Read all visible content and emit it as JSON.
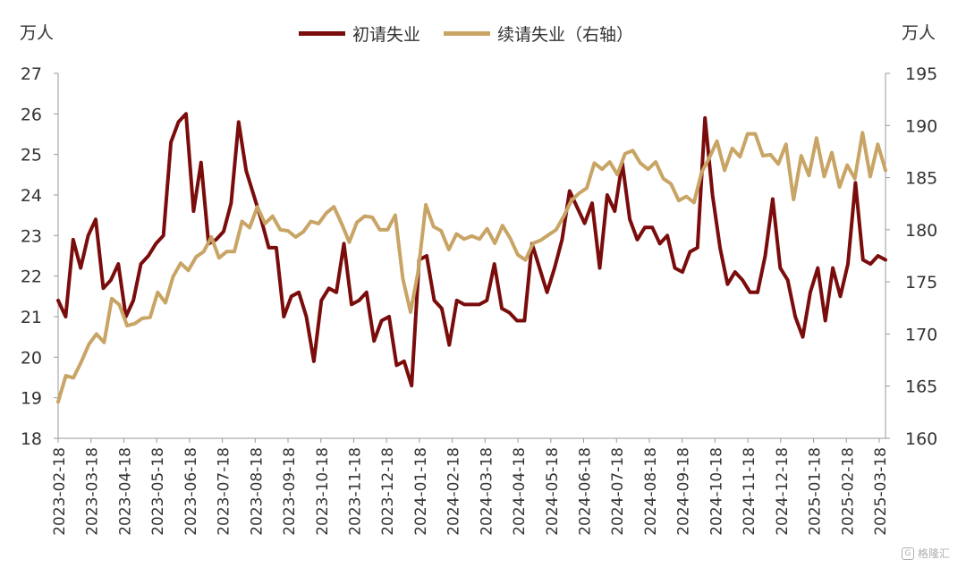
{
  "chart_data": {
    "type": "line",
    "unit_left": "万人",
    "unit_right": "万人",
    "y_left": {
      "min": 18,
      "max": 27,
      "ticks": [
        18,
        19,
        20,
        21,
        22,
        23,
        24,
        25,
        26,
        27
      ]
    },
    "y_right": {
      "min": 160,
      "max": 195,
      "ticks": [
        160,
        165,
        170,
        175,
        180,
        185,
        190,
        195
      ]
    },
    "x_tick_labels": [
      "2023-02-18",
      "2023-03-18",
      "2023-04-18",
      "2023-05-18",
      "2023-06-18",
      "2023-07-18",
      "2023-08-18",
      "2023-09-18",
      "2023-10-18",
      "2023-11-18",
      "2023-12-18",
      "2024-01-18",
      "2024-02-18",
      "2024-03-18",
      "2024-04-18",
      "2024-05-18",
      "2024-06-18",
      "2024-07-18",
      "2024-08-18",
      "2024-09-18",
      "2024-10-18",
      "2024-11-18",
      "2024-12-18",
      "2025-01-18",
      "2025-02-18",
      "2025-03-18"
    ],
    "grid": false,
    "legend_position": "top-center",
    "series": [
      {
        "name": "初请失业",
        "axis": "left",
        "color": "#7a0c0c",
        "values": [
          21.4,
          21.0,
          22.9,
          22.2,
          23.0,
          23.4,
          21.7,
          21.9,
          22.3,
          21.0,
          21.4,
          22.3,
          22.5,
          22.8,
          23.0,
          25.3,
          25.8,
          26.0,
          23.6,
          24.8,
          22.8,
          22.9,
          23.1,
          23.8,
          25.8,
          24.6,
          24.0,
          23.4,
          22.7,
          22.7,
          21.0,
          21.5,
          21.6,
          21.0,
          19.9,
          21.4,
          21.7,
          21.6,
          22.8,
          21.3,
          21.4,
          21.6,
          20.4,
          20.9,
          21.0,
          19.8,
          19.9,
          19.3,
          22.4,
          22.5,
          21.4,
          21.2,
          20.3,
          21.4,
          21.3,
          21.3,
          21.3,
          21.4,
          22.3,
          21.2,
          21.1,
          20.9,
          20.9,
          22.8,
          22.2,
          21.6,
          22.2,
          22.9,
          24.1,
          23.7,
          23.3,
          23.8,
          22.2,
          24.0,
          23.6,
          24.8,
          23.4,
          22.9,
          23.2,
          23.2,
          22.8,
          23.0,
          22.2,
          22.1,
          22.6,
          22.7,
          25.9,
          24.0,
          22.7,
          21.8,
          22.1,
          21.9,
          21.6,
          21.6,
          22.5,
          23.9,
          22.2,
          21.9,
          21.0,
          20.5,
          21.6,
          22.2,
          20.9,
          22.2,
          21.5,
          22.3,
          24.3,
          22.4,
          22.3,
          22.5,
          22.4
        ]
      },
      {
        "name": "续请失业（右轴）",
        "axis": "right",
        "color": "#c8a465",
        "values": [
          163.5,
          166.0,
          165.8,
          167.3,
          169.0,
          170.0,
          169.2,
          173.4,
          172.8,
          170.8,
          171.0,
          171.5,
          171.6,
          174.0,
          173.0,
          175.5,
          176.8,
          176.1,
          177.4,
          177.9,
          179.3,
          177.3,
          177.9,
          177.9,
          180.8,
          180.2,
          182.2,
          180.6,
          181.3,
          180.0,
          179.9,
          179.3,
          179.8,
          180.8,
          180.6,
          181.6,
          182.2,
          180.6,
          178.8,
          180.7,
          181.3,
          181.2,
          180.0,
          180.0,
          181.4,
          175.3,
          172.1,
          176.0,
          182.4,
          180.3,
          179.9,
          178.1,
          179.6,
          179.1,
          179.4,
          179.1,
          180.1,
          178.7,
          180.4,
          179.2,
          177.6,
          177.1,
          178.7,
          179.0,
          179.5,
          180.0,
          181.3,
          182.8,
          183.5,
          184.0,
          186.4,
          185.8,
          186.5,
          185.3,
          187.3,
          187.6,
          186.4,
          185.8,
          186.5,
          184.9,
          184.4,
          182.8,
          183.2,
          182.6,
          185.5,
          186.9,
          188.5,
          185.7,
          187.8,
          187.0,
          189.2,
          189.2,
          187.1,
          187.2,
          186.3,
          188.2,
          182.9,
          187.1,
          185.2,
          188.8,
          185.1,
          187.4,
          184.1,
          186.2,
          184.9,
          189.3,
          185.1,
          188.2,
          185.7
        ]
      }
    ]
  },
  "watermark": {
    "icon": "gelonghui-logo-icon",
    "text": "格隆汇"
  }
}
